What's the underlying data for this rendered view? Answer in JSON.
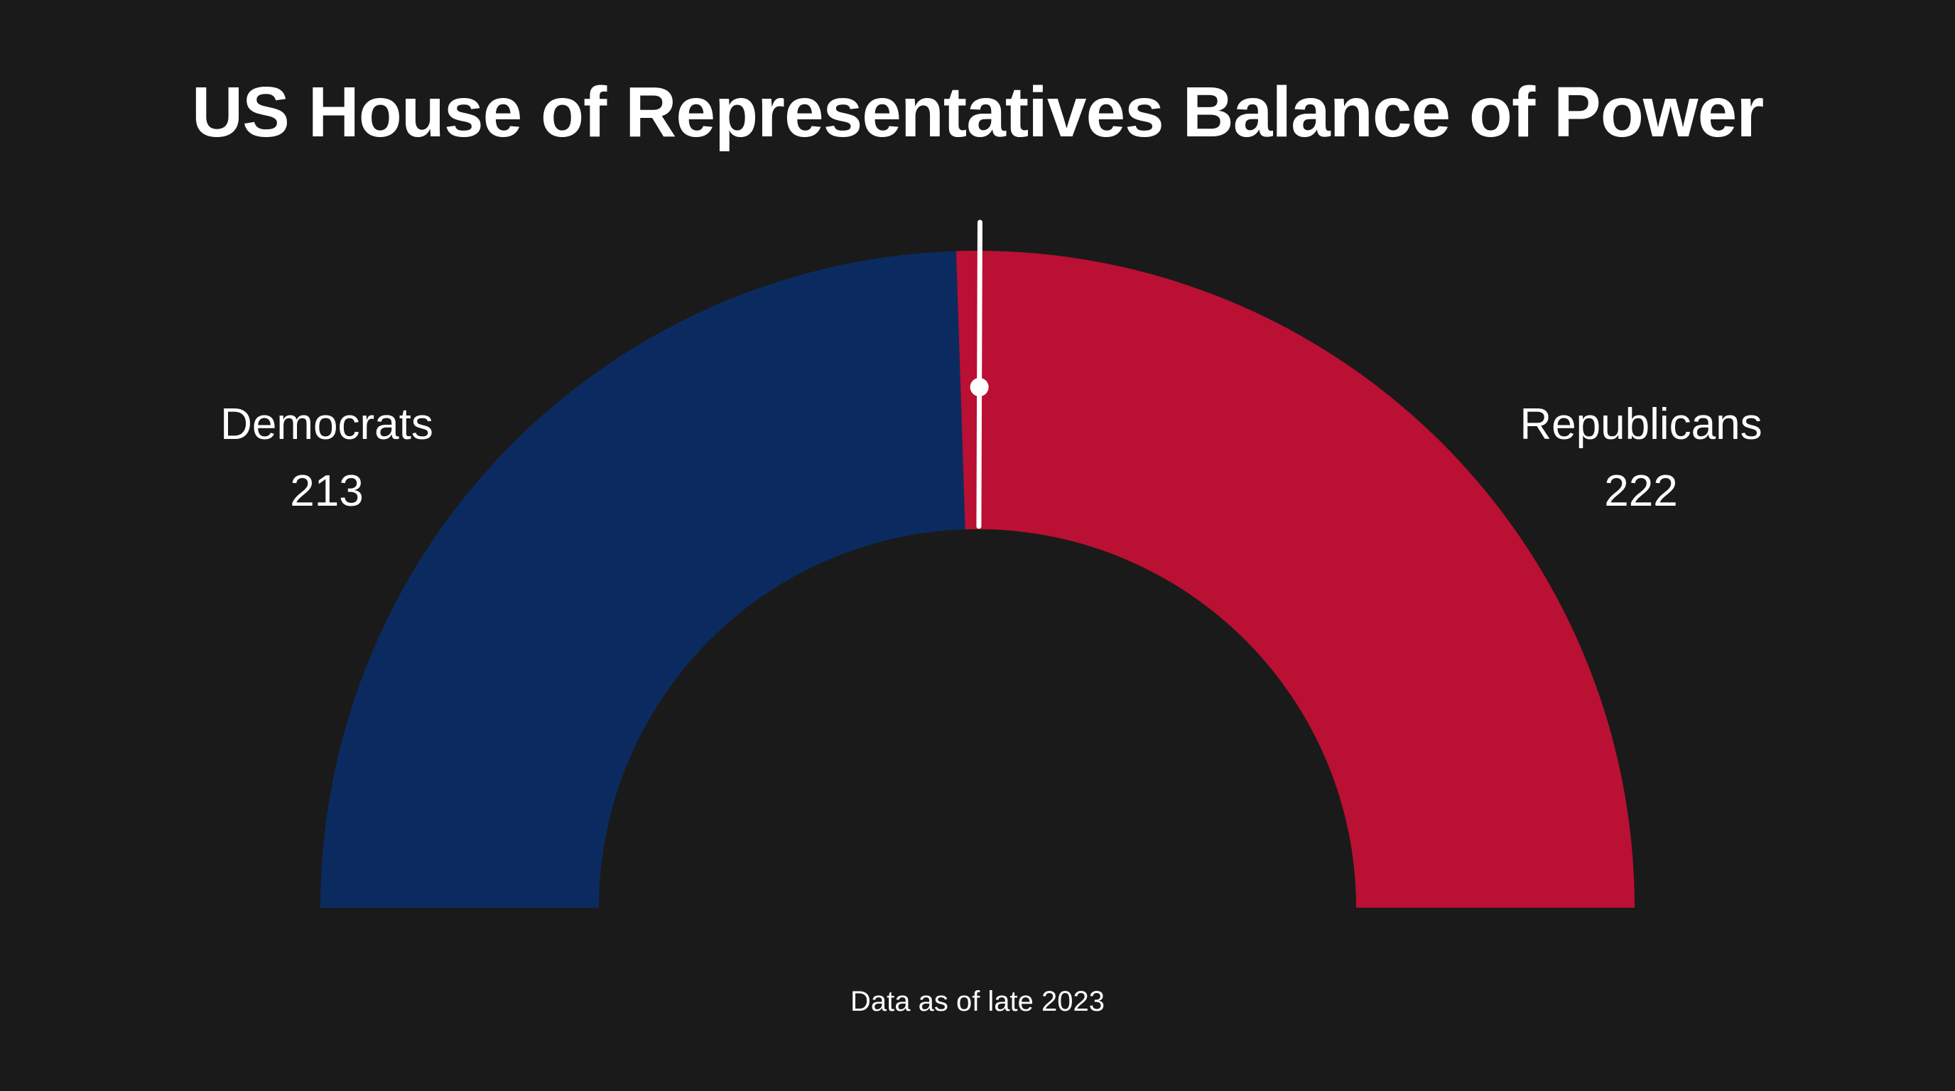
{
  "chart_data": {
    "type": "pie",
    "variant": "half-donut",
    "title": "US House of Representatives Balance of Power",
    "series": [
      {
        "name": "Democrats",
        "value": 213,
        "color": "#0b2b60"
      },
      {
        "name": "Republicans",
        "value": 222,
        "color": "#b91033"
      }
    ],
    "total": 435,
    "needle_value": 218,
    "needle_color": "#ffffff",
    "footnote": "Data as of late 2023"
  }
}
